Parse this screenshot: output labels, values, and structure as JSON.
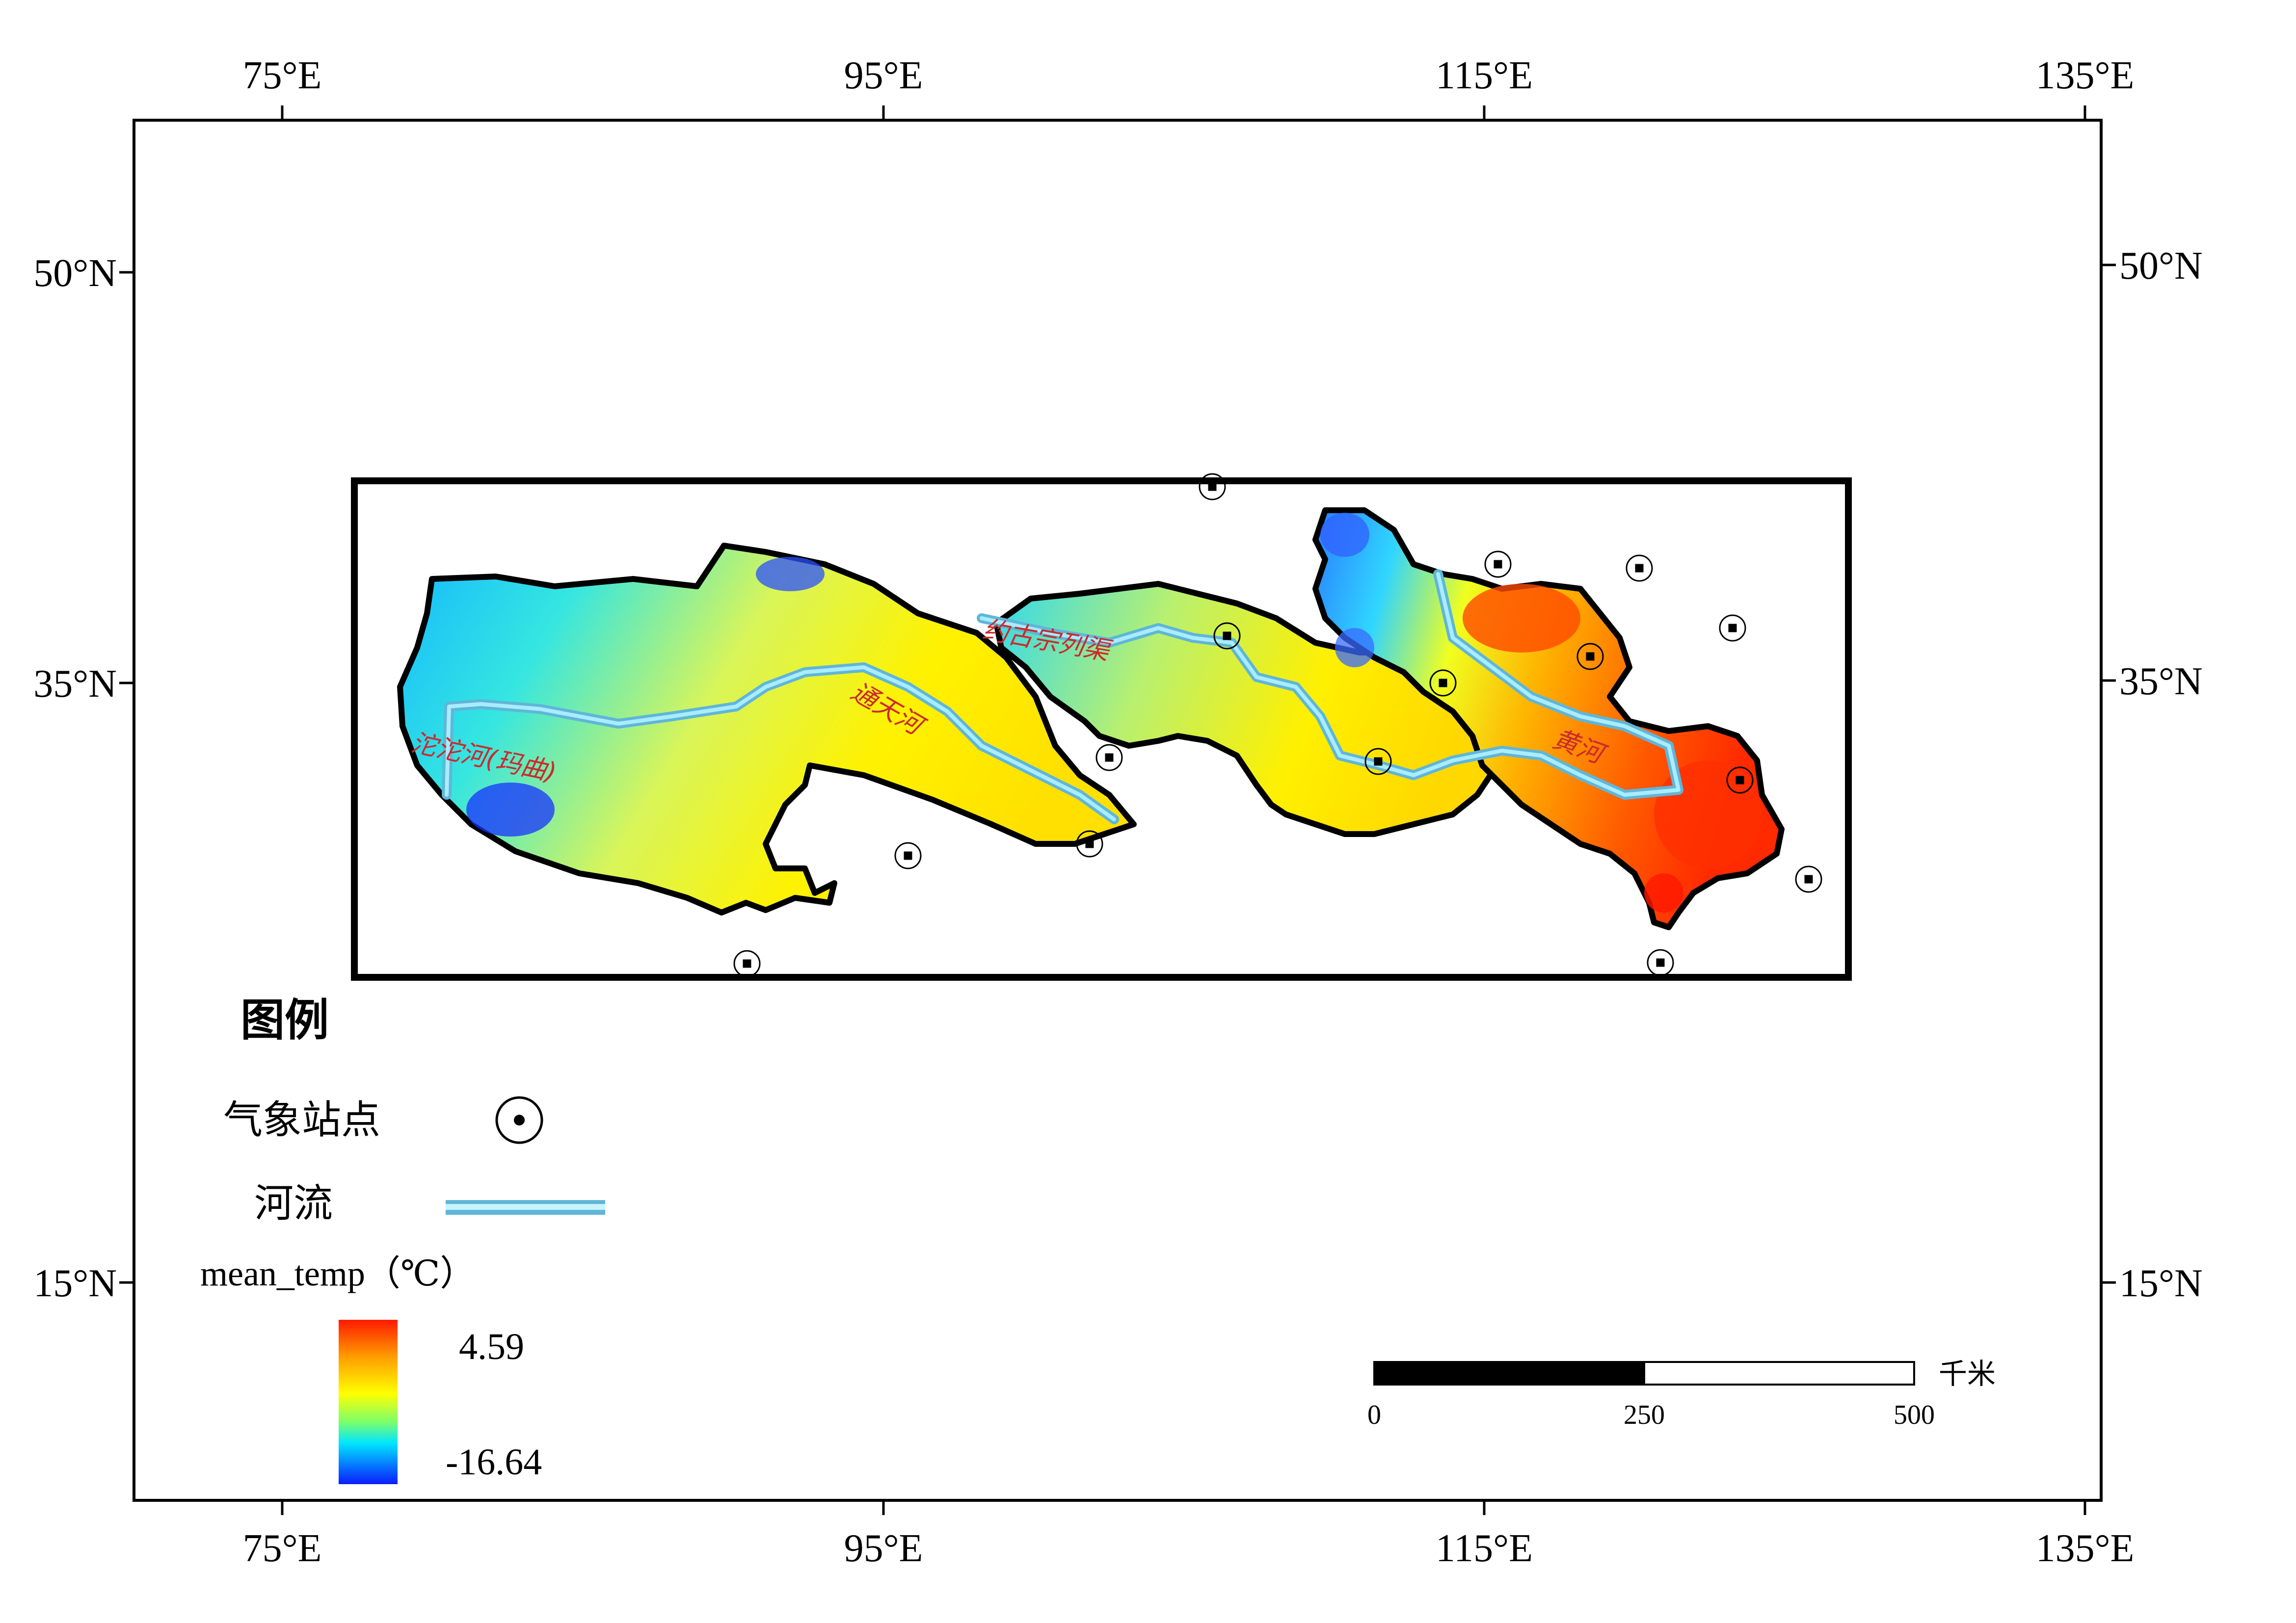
{
  "axes": {
    "top_labels": [
      "75°E",
      "95°E",
      "115°E",
      "135°E"
    ],
    "bottom_labels": [
      "75°E",
      "95°E",
      "115°E",
      "135°E"
    ],
    "left_labels": [
      "50°N",
      "35°N",
      "15°N"
    ],
    "right_labels": [
      "50°N",
      "35°N",
      "15°N"
    ]
  },
  "rivers": {
    "tuotuo": "沱沱河(玛曲)",
    "tongtian": "通天河",
    "yuegu": "约古宗列渠",
    "huanghe": "黄河"
  },
  "legend": {
    "title": "图例",
    "station_label": "气象站点",
    "river_label": "河流",
    "raster_label": "mean_temp（℃）",
    "max_value": "4.59",
    "min_value": "-16.64"
  },
  "scalebar": {
    "ticks": [
      "0",
      "250",
      "500"
    ],
    "unit": "千米"
  },
  "colors": {
    "river": "#86d8f2",
    "high": "#ff2200",
    "mid": "#ffff00",
    "low": "#0028ff"
  }
}
